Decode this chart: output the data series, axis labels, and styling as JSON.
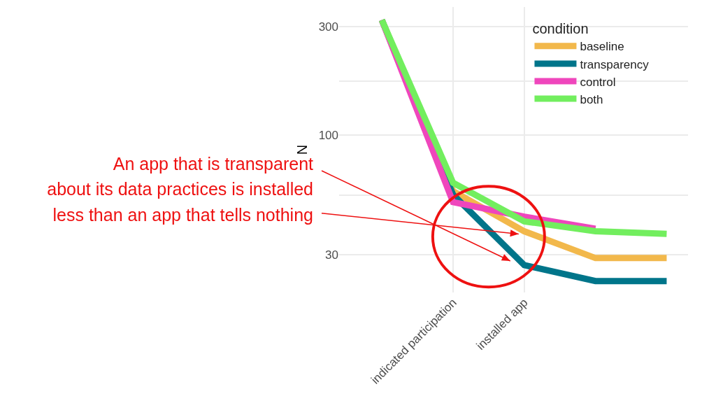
{
  "chart_data": {
    "type": "line",
    "ylabel": "N",
    "legend_title": "condition",
    "categories": [
      null,
      "indicated participation",
      "installed app",
      null,
      null
    ],
    "series": [
      {
        "name": "baseline",
        "color": "#f2b84b",
        "values": [
          320,
          57,
          38,
          29,
          29
        ]
      },
      {
        "name": "transparency",
        "color": "#00758a",
        "values": [
          320,
          55,
          27,
          23,
          23
        ]
      },
      {
        "name": "control",
        "color": "#ef46bc",
        "values": [
          320,
          51,
          44,
          39,
          null
        ]
      },
      {
        "name": "both",
        "color": "#72ee5e",
        "values": [
          320,
          62,
          42,
          38,
          37
        ]
      }
    ],
    "log": "y",
    "ylim": [
      20.5,
      365
    ],
    "yticks": [
      30,
      {
        "value": 54.8,
        "label": null
      },
      100,
      {
        "value": 173.2,
        "label": null
      },
      300
    ],
    "grid": true,
    "legend": "top right",
    "marker": "none",
    "line_style": "solid",
    "annotations": [
      "An app that is transparent\nabout its data practices is installed\nless than an app that tells nothing"
    ]
  }
}
